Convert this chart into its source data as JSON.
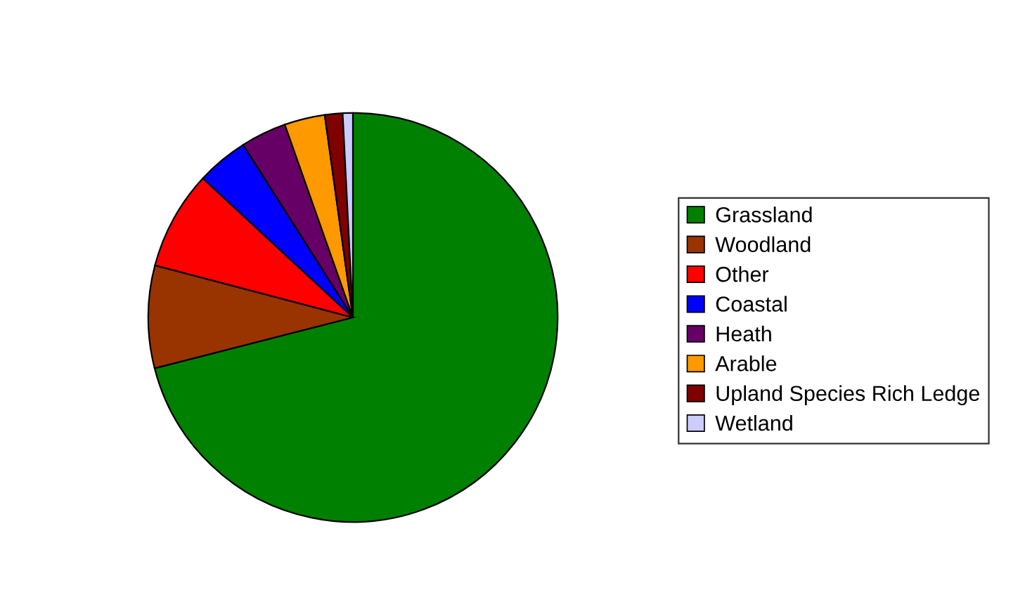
{
  "chart_data": {
    "type": "pie",
    "categories": [
      "Grassland",
      "Woodland",
      "Other",
      "Coastal",
      "Heath",
      "Arable",
      "Upland Species Rich Ledge",
      "Wetland"
    ],
    "values": [
      71.0,
      8.1,
      7.8,
      4.1,
      3.6,
      3.2,
      1.4,
      0.8
    ],
    "colors": [
      "#008000",
      "#993300",
      "#ff0000",
      "#0000ff",
      "#660066",
      "#ff9900",
      "#800000",
      "#ccccff"
    ],
    "legend": "right"
  }
}
